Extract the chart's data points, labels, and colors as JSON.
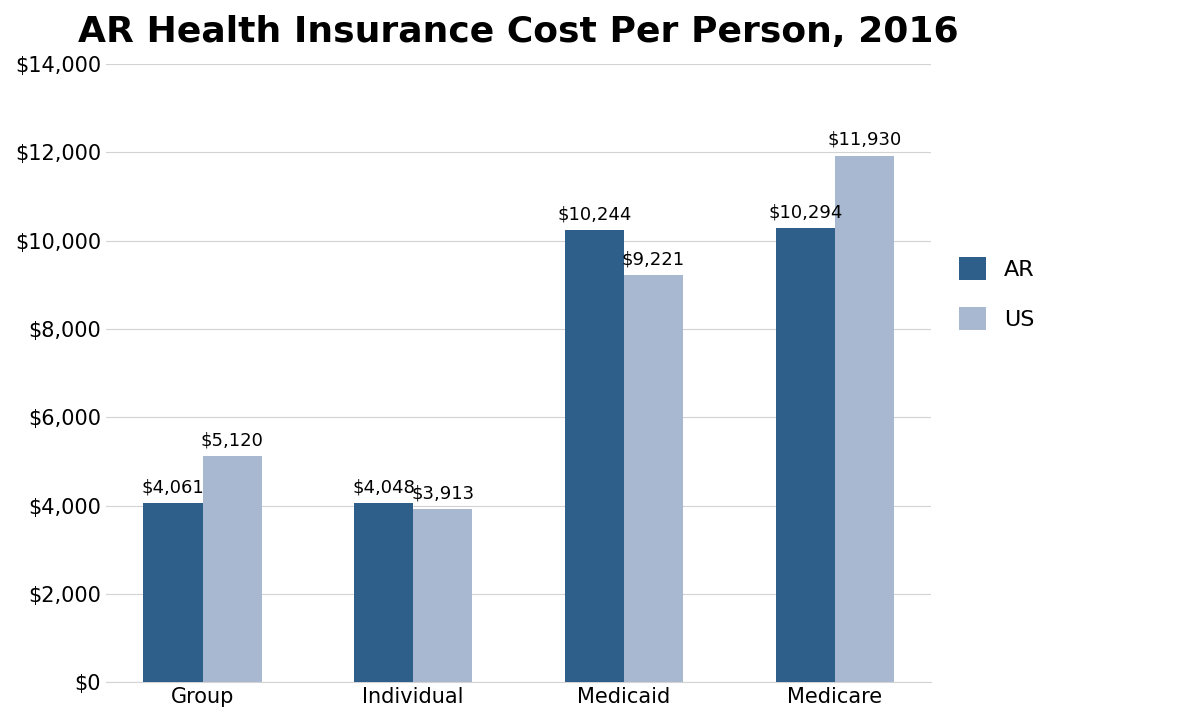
{
  "title": "AR Health Insurance Cost Per Person, 2016",
  "categories": [
    "Group",
    "Individual",
    "Medicaid",
    "Medicare"
  ],
  "ar_values": [
    4061,
    4048,
    10244,
    10294
  ],
  "us_values": [
    5120,
    3913,
    9221,
    11930
  ],
  "ar_color": "#2E5F8A",
  "us_color": "#A8B8D0",
  "ylim": [
    0,
    14000
  ],
  "yticks": [
    0,
    2000,
    4000,
    6000,
    8000,
    10000,
    12000,
    14000
  ],
  "legend_labels": [
    "AR",
    "US"
  ],
  "bar_width": 0.28,
  "title_fontsize": 26,
  "tick_fontsize": 15,
  "annotation_fontsize": 13,
  "legend_fontsize": 16,
  "background_color": "#FFFFFF",
  "grid_color": "#D3D3D3"
}
